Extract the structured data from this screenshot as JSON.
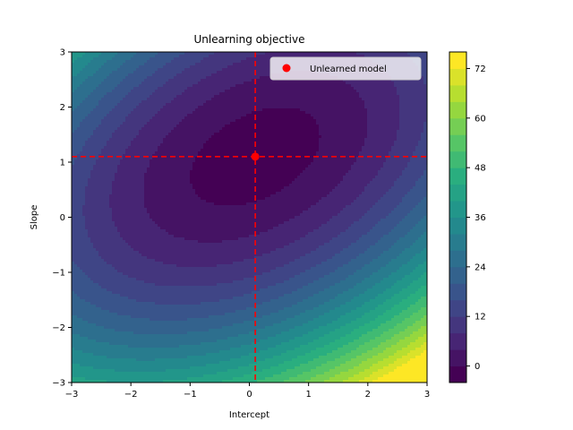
{
  "chart_data": {
    "type": "contour",
    "title": "Unlearning objective",
    "xlabel": "Intercept",
    "ylabel": "Slope",
    "xlim": [
      -3,
      3
    ],
    "ylim": [
      -3,
      3
    ],
    "x_ticks": [
      -3,
      -2,
      -1,
      0,
      1,
      2,
      3
    ],
    "y_ticks": [
      -3,
      -2,
      -1,
      0,
      1,
      2,
      3
    ],
    "colormap": "viridis",
    "colorbar": {
      "min": -4,
      "max": 76,
      "ticks": [
        0,
        12,
        24,
        36,
        48,
        60,
        72
      ],
      "level_step": 4
    },
    "surface": {
      "form": "quadratic",
      "center": [
        0.1,
        1.1
      ],
      "min_value": -2,
      "coef_xx": 2.0,
      "coef_yy": 3.0,
      "coef_xy": -2.0
    },
    "marker": {
      "label": "Unlearned model",
      "x": 0.1,
      "y": 1.1,
      "color": "#ff0000"
    },
    "guide_lines": {
      "x": 0.1,
      "y": 1.1,
      "color": "#ff0000",
      "style": "dashed"
    },
    "legend": {
      "position": "upper-right",
      "entries": [
        "Unlearned model"
      ]
    }
  }
}
